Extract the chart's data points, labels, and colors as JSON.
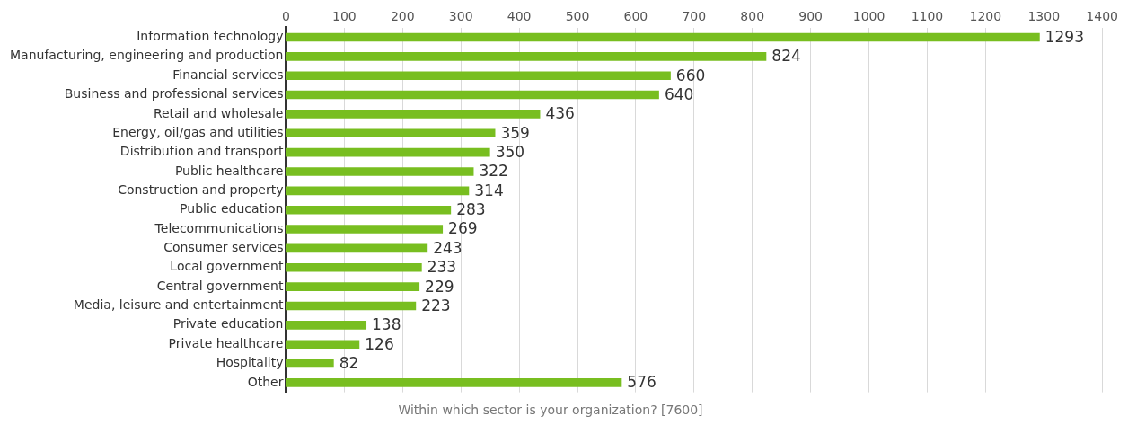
{
  "chart_data": {
    "type": "bar",
    "orientation": "horizontal",
    "xlabel": "Within which sector is your organization? [7600]",
    "categories": [
      "Information technology",
      "Manufacturing, engineering and production",
      "Financial services",
      "Business and professional services",
      "Retail and wholesale",
      "Energy, oil/gas and utilities",
      "Distribution and transport",
      "Public healthcare",
      "Construction and property",
      "Public education",
      "Telecommunications",
      "Consumer services",
      "Local government",
      "Central government",
      "Media, leisure and entertainment",
      "Private education",
      "Private healthcare",
      "Hospitality",
      "Other"
    ],
    "values": [
      1293,
      824,
      660,
      640,
      436,
      359,
      350,
      322,
      314,
      283,
      269,
      243,
      233,
      229,
      223,
      138,
      126,
      82,
      576
    ],
    "color": "#78be20",
    "xlim": [
      0,
      1400
    ],
    "xticks": [
      0,
      100,
      200,
      300,
      400,
      500,
      600,
      700,
      800,
      900,
      1000,
      1100,
      1200,
      1300,
      1400
    ],
    "grid": "x",
    "data_labels": true,
    "legend": false
  }
}
